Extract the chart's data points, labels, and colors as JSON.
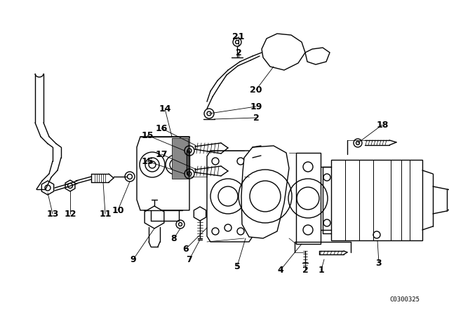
{
  "bg_color": "#ffffff",
  "line_color": "#000000",
  "diagram_code": "C0300325",
  "figsize": [
    6.4,
    4.48
  ],
  "dpi": 100
}
